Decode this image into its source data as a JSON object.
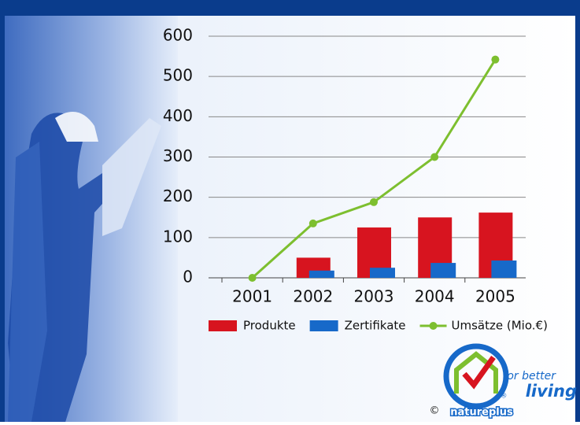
{
  "chart_data": {
    "type": "bar",
    "categories": [
      "2001",
      "2002",
      "2003",
      "2004",
      "2005"
    ],
    "series": [
      {
        "name": "Produkte",
        "type": "bar",
        "color": "#d7141f",
        "values": [
          null,
          50,
          125,
          150,
          162
        ]
      },
      {
        "name": "Zertifikate",
        "type": "bar",
        "color": "#1769c9",
        "values": [
          null,
          18,
          25,
          37,
          43
        ]
      },
      {
        "name": "Umsätze (Mio.€)",
        "type": "line",
        "color": "#7dbf2f",
        "values": [
          0,
          135,
          188,
          300,
          542
        ]
      }
    ],
    "ylim": [
      0,
      600
    ],
    "yticks": [
      0,
      100,
      200,
      300,
      400,
      500,
      600
    ],
    "grid": true,
    "legend": "bottom"
  },
  "logo": {
    "tagline_1": "for better",
    "tagline_2": "living",
    "brand": "natureplus",
    "copyright": "©",
    "registered": "®"
  }
}
